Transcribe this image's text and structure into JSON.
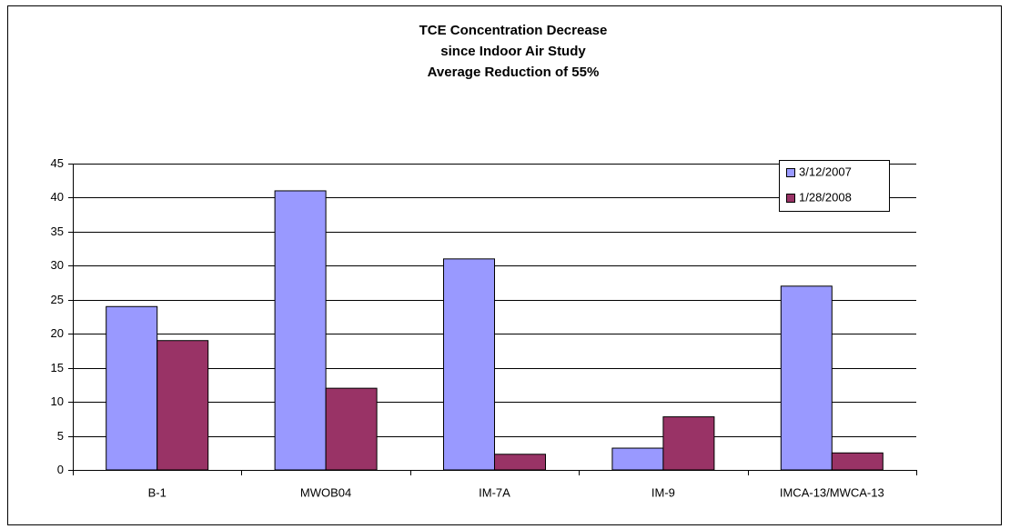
{
  "chart_data": {
    "type": "bar",
    "title": [
      "TCE Concentration Decrease",
      "since Indoor Air Study",
      "Average Reduction of 55%"
    ],
    "categories": [
      "B-1",
      "MWOB04",
      "IM-7A",
      "IM-9",
      "IMCA-13/MWCA-13"
    ],
    "series": [
      {
        "name": "3/12/2007",
        "color": "#9999ff",
        "values": [
          24,
          41,
          31,
          3.2,
          27
        ]
      },
      {
        "name": "1/28/2008",
        "color": "#993366",
        "values": [
          19,
          12,
          2.3,
          7.8,
          2.5
        ]
      }
    ],
    "ylim": [
      0,
      45
    ],
    "yticks": [
      0,
      5,
      10,
      15,
      20,
      25,
      30,
      35,
      40,
      45
    ],
    "grid": true,
    "legend": "top-right"
  }
}
